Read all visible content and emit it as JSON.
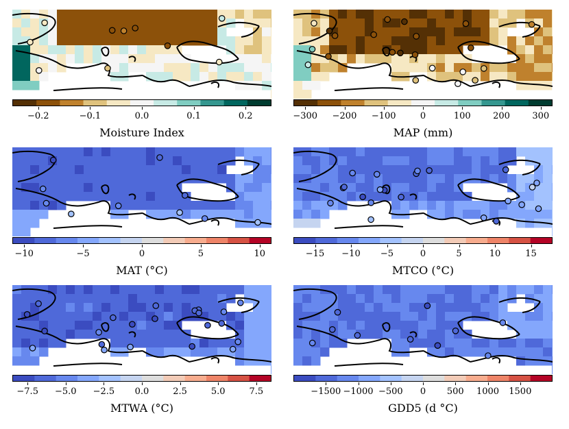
{
  "panels": [
    {
      "id": "moisture",
      "label": "Moisture Index",
      "palette": "brbg",
      "range": [
        -0.25,
        0.25
      ],
      "ticks": [
        "−0.2",
        "−0.1",
        "0.0",
        "0.1",
        "0.2"
      ],
      "tick_values": [
        -0.2,
        -0.1,
        0.0,
        0.1,
        0.2
      ],
      "dots": 10
    },
    {
      "id": "map",
      "label": "MAP (mm)",
      "palette": "brbg",
      "range": [
        -330,
        330
      ],
      "ticks": [
        "−300",
        "−200",
        "−100",
        "0",
        "100",
        "200",
        "300"
      ],
      "tick_values": [
        -300,
        -200,
        -100,
        0,
        100,
        200,
        300
      ],
      "dots": 22
    },
    {
      "id": "mat",
      "label": "MAT (°C)",
      "palette": "coolwarm",
      "range": [
        -11,
        11
      ],
      "ticks": [
        "−10",
        "−5",
        "0",
        "5",
        "10"
      ],
      "tick_values": [
        -10,
        -5,
        0,
        5,
        10
      ],
      "dots": 10
    },
    {
      "id": "mtco",
      "label": "MTCO (°C)",
      "palette": "coolwarm",
      "range": [
        -18,
        18
      ],
      "ticks": [
        "−15",
        "−10",
        "−5",
        "0",
        "5",
        "10",
        "15"
      ],
      "tick_values": [
        -15,
        -10,
        -5,
        0,
        5,
        10,
        15
      ],
      "dots": 22
    },
    {
      "id": "mtwa",
      "label": "MTWA (°C)",
      "palette": "coolwarm",
      "range": [
        -8.5,
        8.5
      ],
      "ticks": [
        "−7.5",
        "−5.0",
        "−2.5",
        "0.0",
        "2.5",
        "5.0",
        "7.5"
      ],
      "tick_values": [
        -7.5,
        -5.0,
        -2.5,
        0.0,
        2.5,
        5.0,
        7.5
      ],
      "dots": 22
    },
    {
      "id": "gdd5",
      "label": "GDD5 (d °C)",
      "palette": "coolwarm",
      "range": [
        -2000,
        2000
      ],
      "ticks": [
        "−1500",
        "−1000",
        "−500",
        "0",
        "500",
        "1000",
        "1500"
      ],
      "tick_values": [
        -1500,
        -1000,
        -500,
        0,
        500,
        1000,
        1500
      ],
      "dots": 10
    }
  ],
  "colors": {
    "brbg": [
      "#543005",
      "#8c510a",
      "#bf812d",
      "#dfc27d",
      "#f6e8c3",
      "#f5f5f5",
      "#c7eae5",
      "#80cdc1",
      "#35978f",
      "#01665e",
      "#003c30"
    ],
    "coolwarm": [
      "#3b4cc0",
      "#4f69d9",
      "#6788ee",
      "#84a7fc",
      "#a3c2fe",
      "#c5d4f0",
      "#dddddd",
      "#f2cbb7",
      "#f7ac8e",
      "#ee8468",
      "#d65244",
      "#b40426"
    ]
  }
}
